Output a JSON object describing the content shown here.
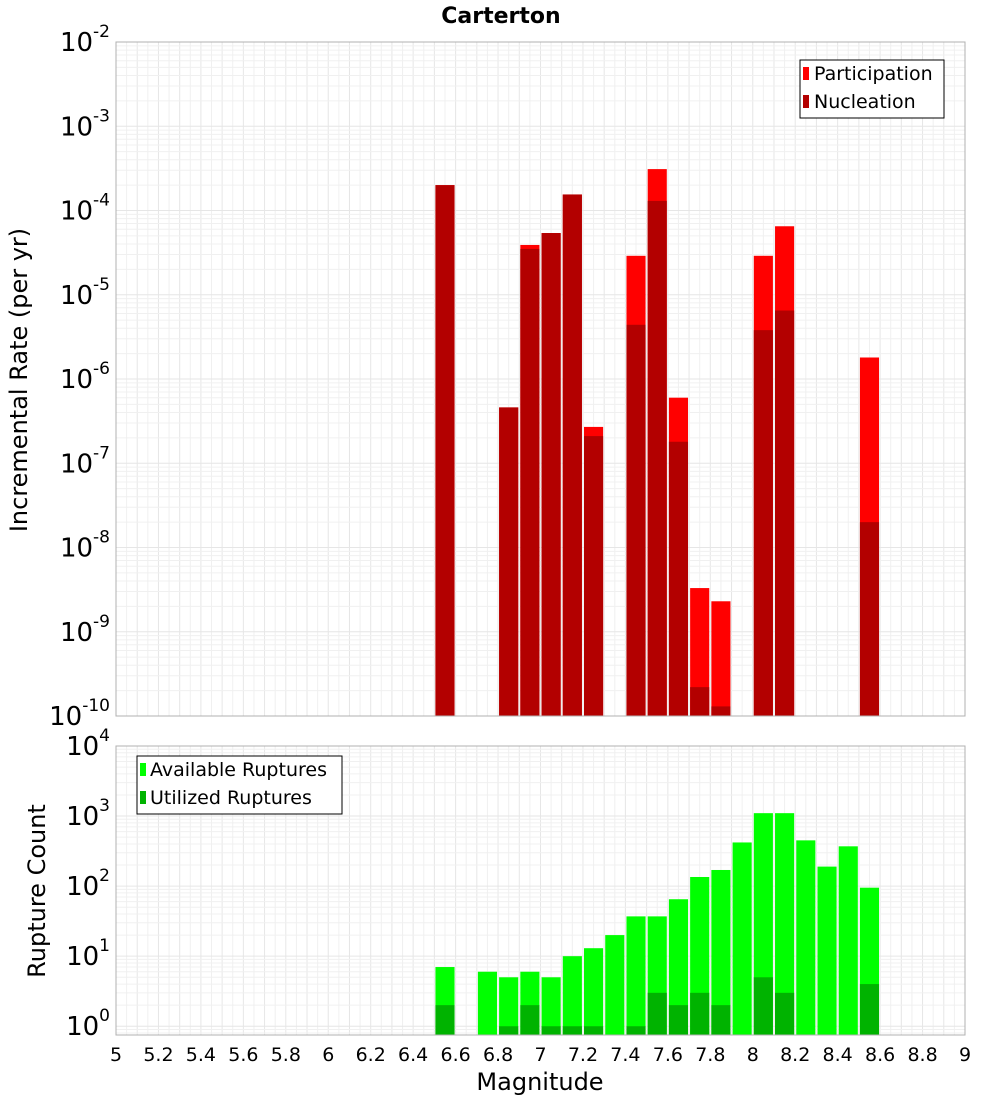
{
  "chart_data": [
    {
      "type": "bar",
      "title": "Carterton",
      "ylabel": "Incremental Rate (per yr)",
      "xlabel": "",
      "yscale": "log",
      "ylim": [
        1e-10,
        0.01
      ],
      "xlim": [
        5,
        9
      ],
      "y_tick_labels": [
        {
          "value": 1e-10,
          "base": "10",
          "exp": "-10"
        },
        {
          "value": 1e-09,
          "base": "10",
          "exp": "-9"
        },
        {
          "value": 1e-08,
          "base": "10",
          "exp": "-8"
        },
        {
          "value": 1e-07,
          "base": "10",
          "exp": "-7"
        },
        {
          "value": 1e-06,
          "base": "10",
          "exp": "-6"
        },
        {
          "value": 1e-05,
          "base": "10",
          "exp": "-5"
        },
        {
          "value": 0.0001,
          "base": "10",
          "exp": "-4"
        },
        {
          "value": 0.001,
          "base": "10",
          "exp": "-3"
        },
        {
          "value": 0.01,
          "base": "10",
          "exp": "-2"
        }
      ],
      "legend_position": "top-right",
      "series": [
        {
          "name": "Participation",
          "color": "#ff0000",
          "x": [
            6.55,
            6.85,
            6.95,
            7.05,
            7.15,
            7.25,
            7.45,
            7.55,
            7.65,
            7.75,
            7.85,
            8.05,
            8.15,
            8.55
          ],
          "values": [
            0.0002,
            4.6e-07,
            3.9e-05,
            5.4e-05,
            0.000155,
            2.7e-07,
            2.9e-05,
            0.00031,
            6e-07,
            3.3e-09,
            2.3e-09,
            2.9e-05,
            6.5e-05,
            1.8e-06
          ]
        },
        {
          "name": "Nucleation",
          "color": "#b30000",
          "x": [
            6.55,
            6.85,
            6.95,
            7.05,
            7.15,
            7.25,
            7.45,
            7.55,
            7.65,
            7.75,
            7.85,
            8.05,
            8.15,
            8.55
          ],
          "values": [
            0.0002,
            4.6e-07,
            3.5e-05,
            5.4e-05,
            0.000155,
            2.1e-07,
            4.4e-06,
            0.00013,
            1.8e-07,
            2.2e-10,
            1.3e-10,
            3.8e-06,
            6.5e-06,
            2e-08
          ]
        }
      ]
    },
    {
      "type": "bar",
      "title": "",
      "ylabel": "Rupture Count",
      "xlabel": "Magnitude",
      "yscale": "log",
      "ylim": [
        0.75,
        10000
      ],
      "xlim": [
        5,
        9
      ],
      "x_tick_labels": [
        "5",
        "5.2",
        "5.4",
        "5.6",
        "5.8",
        "6",
        "6.2",
        "6.4",
        "6.6",
        "6.8",
        "7",
        "7.2",
        "7.4",
        "7.6",
        "7.8",
        "8",
        "8.2",
        "8.4",
        "8.6",
        "8.8",
        "9"
      ],
      "y_tick_labels": [
        {
          "value": 1,
          "base": "10",
          "exp": "0"
        },
        {
          "value": 10,
          "base": "10",
          "exp": "1"
        },
        {
          "value": 100,
          "base": "10",
          "exp": "2"
        },
        {
          "value": 1000,
          "base": "10",
          "exp": "3"
        },
        {
          "value": 10000,
          "base": "10",
          "exp": "4"
        }
      ],
      "legend_position": "top-left",
      "series": [
        {
          "name": "Available Ruptures",
          "color": "#00ff00",
          "x": [
            6.55,
            6.75,
            6.85,
            6.95,
            7.05,
            7.15,
            7.25,
            7.35,
            7.45,
            7.55,
            7.65,
            7.75,
            7.85,
            7.95,
            8.05,
            8.15,
            8.25,
            8.35,
            8.45,
            8.55
          ],
          "values": [
            7,
            6,
            5,
            6,
            5,
            10,
            13,
            20,
            37,
            37,
            65,
            135,
            170,
            420,
            1100,
            1100,
            450,
            190,
            370,
            95
          ]
        },
        {
          "name": "Utilized Ruptures",
          "color": "#00b300",
          "x": [
            6.55,
            6.85,
            6.95,
            7.05,
            7.15,
            7.25,
            7.45,
            7.55,
            7.65,
            7.75,
            7.85,
            8.05,
            8.15,
            8.55
          ],
          "values": [
            2,
            1,
            2,
            1,
            1,
            1,
            1,
            3,
            2,
            3,
            2,
            5,
            3,
            4
          ]
        }
      ]
    }
  ]
}
